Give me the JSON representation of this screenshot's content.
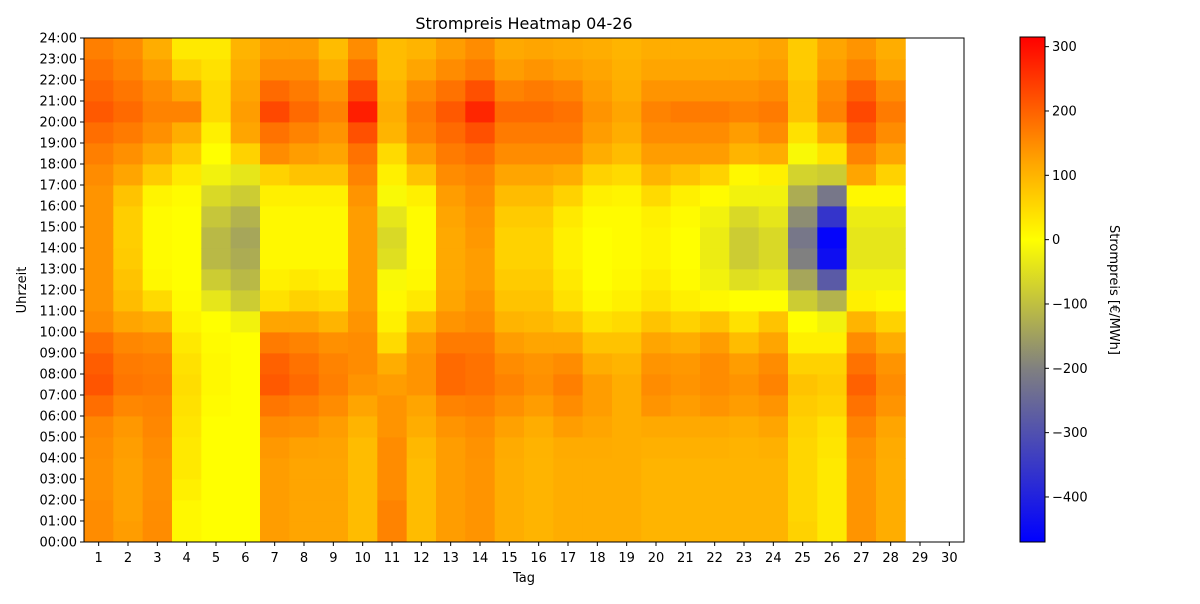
{
  "chart_data": {
    "type": "heatmap",
    "title": "Strompreis Heatmap 04-26",
    "xlabel": "Tag",
    "ylabel": "Uhrzeit",
    "colorbar_label": "Strompreis [€/MWh]",
    "x_categories": [
      "1",
      "2",
      "3",
      "4",
      "5",
      "6",
      "7",
      "8",
      "9",
      "10",
      "11",
      "12",
      "13",
      "14",
      "15",
      "16",
      "17",
      "18",
      "19",
      "20",
      "21",
      "22",
      "23",
      "24",
      "25",
      "26",
      "27",
      "28",
      "29",
      "30"
    ],
    "y_tick_labels": [
      "00:00",
      "01:00",
      "02:00",
      "03:00",
      "04:00",
      "05:00",
      "06:00",
      "07:00",
      "08:00",
      "09:00",
      "10:00",
      "11:00",
      "12:00",
      "13:00",
      "14:00",
      "15:00",
      "16:00",
      "17:00",
      "18:00",
      "19:00",
      "20:00",
      "21:00",
      "22:00",
      "23:00",
      "24:00"
    ],
    "colorbar_ticks": [
      300,
      200,
      100,
      0,
      -100,
      -200,
      -300,
      -400
    ],
    "vmin": -470,
    "vmax": 315,
    "colorscale": [
      {
        "value": -470,
        "color": "#0000ff"
      },
      {
        "value": -200,
        "color": "#808080"
      },
      {
        "value": 0,
        "color": "#ffff00"
      },
      {
        "value": 120,
        "color": "#ffa500"
      },
      {
        "value": 315,
        "color": "#ff0000"
      }
    ],
    "hours": [
      "00",
      "01",
      "02",
      "03",
      "04",
      "05",
      "06",
      "07",
      "08",
      "09",
      "10",
      "11",
      "12",
      "13",
      "14",
      "15",
      "16",
      "17",
      "18",
      "19",
      "20",
      "21",
      "22",
      "23"
    ],
    "days_with_data": 28,
    "values": [
      [
        150,
        150,
        145,
        145,
        148,
        155,
        185,
        215,
        205,
        185,
        150,
        140,
        140,
        140,
        140,
        140,
        140,
        150,
        165,
        185,
        210,
        195,
        180,
        165
      ],
      [
        130,
        125,
        125,
        125,
        128,
        135,
        155,
        175,
        170,
        155,
        120,
        90,
        80,
        70,
        65,
        65,
        80,
        120,
        145,
        170,
        190,
        175,
        160,
        150
      ],
      [
        150,
        148,
        145,
        145,
        150,
        155,
        160,
        170,
        165,
        150,
        110,
        50,
        10,
        5,
        5,
        5,
        15,
        70,
        115,
        145,
        160,
        150,
        130,
        110
      ],
      [
        10,
        10,
        20,
        30,
        30,
        35,
        40,
        45,
        40,
        30,
        15,
        5,
        0,
        0,
        0,
        0,
        5,
        30,
        70,
        110,
        160,
        120,
        60,
        30
      ],
      [
        0,
        0,
        0,
        0,
        0,
        0,
        5,
        10,
        10,
        5,
        0,
        -40,
        -80,
        -110,
        -110,
        -90,
        -60,
        -20,
        0,
        20,
        50,
        50,
        40,
        30
      ],
      [
        0,
        0,
        0,
        0,
        0,
        0,
        0,
        0,
        0,
        0,
        -20,
        -80,
        -110,
        -130,
        -140,
        -120,
        -80,
        -40,
        60,
        120,
        130,
        120,
        110,
        100
      ],
      [
        130,
        130,
        130,
        130,
        135,
        150,
        175,
        210,
        200,
        170,
        120,
        40,
        20,
        10,
        10,
        10,
        20,
        60,
        150,
        180,
        230,
        190,
        150,
        130
      ],
      [
        120,
        120,
        120,
        120,
        125,
        145,
        165,
        190,
        180,
        160,
        120,
        60,
        30,
        10,
        10,
        10,
        20,
        80,
        130,
        160,
        190,
        170,
        150,
        130
      ],
      [
        120,
        120,
        120,
        120,
        122,
        130,
        150,
        165,
        160,
        145,
        100,
        50,
        20,
        10,
        10,
        10,
        20,
        80,
        120,
        140,
        160,
        140,
        110,
        90
      ],
      [
        90,
        90,
        90,
        90,
        90,
        100,
        120,
        140,
        150,
        150,
        140,
        130,
        130,
        130,
        130,
        130,
        140,
        160,
        180,
        220,
        280,
        230,
        180,
        150
      ],
      [
        160,
        160,
        150,
        150,
        150,
        140,
        140,
        130,
        110,
        50,
        20,
        10,
        -10,
        -50,
        -60,
        -40,
        -10,
        20,
        50,
        100,
        110,
        100,
        90,
        90
      ],
      [
        90,
        90,
        90,
        90,
        95,
        110,
        120,
        140,
        140,
        130,
        90,
        30,
        10,
        5,
        5,
        5,
        20,
        80,
        130,
        160,
        170,
        150,
        120,
        100
      ],
      [
        130,
        130,
        130,
        130,
        130,
        140,
        160,
        190,
        190,
        170,
        140,
        120,
        115,
        115,
        115,
        120,
        130,
        150,
        170,
        190,
        210,
        180,
        150,
        130
      ],
      [
        140,
        140,
        140,
        140,
        142,
        150,
        165,
        180,
        180,
        170,
        150,
        140,
        130,
        130,
        135,
        140,
        150,
        160,
        185,
        220,
        270,
        220,
        170,
        150
      ],
      [
        110,
        110,
        110,
        110,
        112,
        125,
        145,
        160,
        150,
        130,
        100,
        80,
        70,
        60,
        60,
        70,
        90,
        120,
        150,
        170,
        190,
        160,
        130,
        115
      ],
      [
        100,
        100,
        100,
        100,
        102,
        110,
        130,
        145,
        140,
        120,
        95,
        80,
        70,
        60,
        60,
        70,
        90,
        120,
        150,
        170,
        190,
        170,
        140,
        120
      ],
      [
        110,
        110,
        110,
        110,
        112,
        130,
        150,
        165,
        150,
        120,
        80,
        40,
        30,
        20,
        20,
        30,
        60,
        110,
        150,
        170,
        180,
        160,
        130,
        115
      ],
      [
        110,
        110,
        110,
        110,
        112,
        120,
        130,
        130,
        110,
        80,
        40,
        10,
        0,
        0,
        0,
        5,
        20,
        60,
        110,
        130,
        140,
        130,
        120,
        110
      ],
      [
        110,
        110,
        110,
        110,
        110,
        110,
        110,
        110,
        100,
        80,
        50,
        20,
        10,
        5,
        5,
        5,
        15,
        50,
        90,
        110,
        120,
        110,
        105,
        100
      ],
      [
        100,
        100,
        100,
        100,
        105,
        115,
        140,
        150,
        140,
        120,
        80,
        40,
        25,
        15,
        15,
        20,
        50,
        100,
        130,
        150,
        160,
        140,
        120,
        110
      ],
      [
        100,
        100,
        100,
        100,
        105,
        115,
        130,
        140,
        135,
        110,
        60,
        20,
        5,
        0,
        0,
        5,
        20,
        80,
        130,
        150,
        170,
        140,
        120,
        110
      ],
      [
        100,
        100,
        100,
        100,
        105,
        115,
        140,
        150,
        150,
        130,
        80,
        10,
        -20,
        -30,
        -30,
        -20,
        5,
        60,
        130,
        150,
        170,
        140,
        120,
        110
      ],
      [
        100,
        100,
        100,
        100,
        102,
        110,
        130,
        140,
        130,
        90,
        40,
        0,
        -50,
        -80,
        -80,
        -60,
        -20,
        10,
        100,
        130,
        160,
        140,
        120,
        110
      ],
      [
        100,
        100,
        100,
        100,
        105,
        120,
        140,
        160,
        150,
        120,
        80,
        0,
        -40,
        -60,
        -60,
        -40,
        -20,
        20,
        110,
        150,
        170,
        150,
        130,
        120
      ],
      [
        60,
        55,
        55,
        55,
        55,
        60,
        70,
        80,
        60,
        20,
        0,
        -80,
        -140,
        -200,
        -220,
        -180,
        -130,
        -70,
        -10,
        40,
        80,
        80,
        70,
        70
      ],
      [
        30,
        30,
        30,
        30,
        35,
        40,
        60,
        70,
        60,
        20,
        -20,
        -120,
        -280,
        -440,
        -460,
        -360,
        -220,
        -80,
        40,
        110,
        160,
        150,
        130,
        120
      ],
      [
        140,
        140,
        140,
        140,
        145,
        160,
        180,
        200,
        180,
        150,
        100,
        20,
        -20,
        -40,
        -40,
        -30,
        10,
        120,
        160,
        200,
        230,
        200,
        160,
        140
      ],
      [
        110,
        110,
        110,
        110,
        112,
        120,
        140,
        150,
        140,
        110,
        60,
        10,
        -20,
        -40,
        -40,
        -30,
        10,
        60,
        120,
        150,
        170,
        150,
        120,
        110
      ]
    ]
  }
}
